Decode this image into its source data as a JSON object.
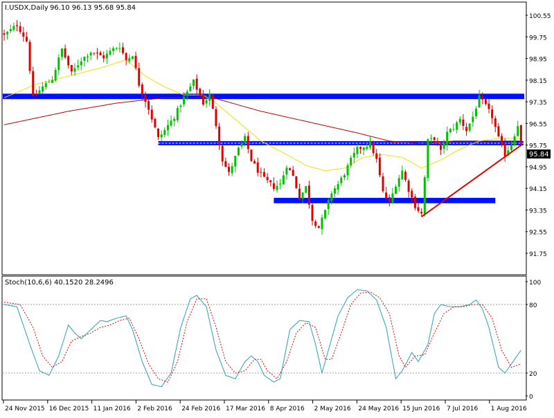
{
  "header": {
    "title": "I.USDX,Daily",
    "ohlc": "96.10 96.13 95.68 95.84"
  },
  "stoch_header": "Stoch(10,6,6) 40.1520 28.2496",
  "current_price_label": "95.84",
  "colors": {
    "bull": "#00c000",
    "bear": "#e00000",
    "ma_fast": "#f0e000",
    "ma_slow": "#c00000",
    "zone": "#0010ff",
    "trendline": "#e00000",
    "stoch_main": "#2aa0b0",
    "stoch_signal": "#e00000",
    "grid_text": "#000000"
  },
  "chart_data": [
    {
      "type": "candlestick",
      "title": "I.USDX,Daily",
      "ylim": [
        91.75,
        100.85
      ],
      "y_ticks": [
        "100.55",
        "99.75",
        "98.95",
        "98.15",
        "97.35",
        "96.55",
        "95.75",
        "94.95",
        "94.15",
        "93.35",
        "92.55",
        "91.75"
      ],
      "x_ticks": [
        "24 Nov 2015",
        "16 Dec 2015",
        "11 Jan 2016",
        "2 Feb 2016",
        "24 Feb 2016",
        "17 Mar 2016",
        "8 Apr 2016",
        "2 May 2016",
        "24 May 2016",
        "15 Jun 2016",
        "7 Jul 2016",
        "1 Aug 2016"
      ],
      "close_anchors": [
        [
          0,
          99.8
        ],
        [
          4,
          100.2
        ],
        [
          7,
          99.6
        ],
        [
          9,
          97.5
        ],
        [
          12,
          97.9
        ],
        [
          15,
          98.2
        ],
        [
          18,
          99.3
        ],
        [
          21,
          98.4
        ],
        [
          24,
          98.9
        ],
        [
          27,
          99.2
        ],
        [
          31,
          99.0
        ],
        [
          34,
          99.3
        ],
        [
          36,
          99.4
        ],
        [
          38,
          98.9
        ],
        [
          40,
          99.1
        ],
        [
          42,
          98.0
        ],
        [
          45,
          97.1
        ],
        [
          48,
          96.0
        ],
        [
          50,
          96.3
        ],
        [
          53,
          96.8
        ],
        [
          56,
          97.5
        ],
        [
          59,
          98.1
        ],
        [
          62,
          97.3
        ],
        [
          64,
          97.6
        ],
        [
          66,
          96.5
        ],
        [
          68,
          95.2
        ],
        [
          70,
          94.7
        ],
        [
          73,
          95.6
        ],
        [
          75,
          96.0
        ],
        [
          77,
          95.2
        ],
        [
          79,
          94.8
        ],
        [
          81,
          94.5
        ],
        [
          84,
          94.2
        ],
        [
          86,
          94.3
        ],
        [
          88,
          95.0
        ],
        [
          90,
          94.6
        ],
        [
          92,
          93.8
        ],
        [
          94,
          94.2
        ],
        [
          96,
          93.0
        ],
        [
          98,
          92.7
        ],
        [
          100,
          93.3
        ],
        [
          102,
          94.0
        ],
        [
          104,
          94.3
        ],
        [
          106,
          94.7
        ],
        [
          108,
          95.2
        ],
        [
          110,
          95.6
        ],
        [
          112,
          95.7
        ],
        [
          114,
          95.8
        ],
        [
          116,
          95.2
        ],
        [
          118,
          94.0
        ],
        [
          120,
          93.6
        ],
        [
          122,
          94.3
        ],
        [
          124,
          94.8
        ],
        [
          126,
          94.1
        ],
        [
          128,
          93.5
        ],
        [
          130,
          93.2
        ],
        [
          132,
          95.9
        ],
        [
          134,
          96.0
        ],
        [
          136,
          95.5
        ],
        [
          138,
          96.2
        ],
        [
          140,
          96.4
        ],
        [
          142,
          96.7
        ],
        [
          144,
          96.3
        ],
        [
          146,
          96.8
        ],
        [
          148,
          97.5
        ],
        [
          150,
          97.2
        ],
        [
          152,
          96.8
        ],
        [
          154,
          96.0
        ],
        [
          156,
          95.4
        ],
        [
          158,
          95.8
        ],
        [
          160,
          96.5
        ],
        [
          161,
          95.84
        ]
      ],
      "ma_fast_anchors": [
        [
          0,
          97.5
        ],
        [
          10,
          98.0
        ],
        [
          20,
          98.3
        ],
        [
          30,
          98.6
        ],
        [
          38,
          98.9
        ],
        [
          44,
          98.3
        ],
        [
          50,
          97.9
        ],
        [
          56,
          97.6
        ],
        [
          62,
          97.6
        ],
        [
          66,
          97.3
        ],
        [
          72,
          96.7
        ],
        [
          80,
          95.9
        ],
        [
          88,
          95.4
        ],
        [
          94,
          95.0
        ],
        [
          100,
          94.8
        ],
        [
          106,
          94.9
        ],
        [
          112,
          95.3
        ],
        [
          118,
          95.4
        ],
        [
          124,
          95.3
        ],
        [
          130,
          94.9
        ],
        [
          136,
          95.2
        ],
        [
          142,
          95.6
        ],
        [
          148,
          95.9
        ],
        [
          154,
          96.0
        ],
        [
          160,
          96.0
        ]
      ],
      "ma_slow_anchors": [
        [
          0,
          96.5
        ],
        [
          20,
          97.0
        ],
        [
          35,
          97.3
        ],
        [
          50,
          97.5
        ],
        [
          65,
          97.5
        ],
        [
          80,
          97.0
        ],
        [
          95,
          96.6
        ],
        [
          110,
          96.2
        ],
        [
          120,
          95.9
        ],
        [
          130,
          95.8
        ],
        [
          140,
          95.9
        ],
        [
          150,
          95.9
        ],
        [
          161,
          95.9
        ]
      ],
      "resistance_zone": [
        97.45,
        97.65
      ],
      "support_line": 95.82,
      "lower_zone": [
        93.6,
        93.8
      ],
      "trendline": [
        [
          130,
          93.1
        ],
        [
          161,
          95.78
        ]
      ]
    },
    {
      "type": "line",
      "title": "Stoch(10,6,6) 40.1520 28.2496",
      "ylim": [
        0,
        100
      ],
      "y_ticks": [
        "100",
        "80",
        "20",
        "0"
      ],
      "series": [
        {
          "name": "main",
          "anchors": [
            [
              0,
              80
            ],
            [
              4,
              78
            ],
            [
              8,
              45
            ],
            [
              11,
              22
            ],
            [
              14,
              18
            ],
            [
              17,
              35
            ],
            [
              20,
              62
            ],
            [
              22,
              55
            ],
            [
              24,
              50
            ],
            [
              27,
              58
            ],
            [
              30,
              66
            ],
            [
              32,
              65
            ],
            [
              35,
              68
            ],
            [
              38,
              70
            ],
            [
              40,
              58
            ],
            [
              43,
              30
            ],
            [
              46,
              10
            ],
            [
              49,
              8
            ],
            [
              52,
              20
            ],
            [
              55,
              60
            ],
            [
              58,
              85
            ],
            [
              60,
              88
            ],
            [
              63,
              78
            ],
            [
              66,
              40
            ],
            [
              69,
              18
            ],
            [
              72,
              15
            ],
            [
              75,
              30
            ],
            [
              77,
              35
            ],
            [
              79,
              30
            ],
            [
              81,
              18
            ],
            [
              84,
              12
            ],
            [
              86,
              15
            ],
            [
              89,
              58
            ],
            [
              92,
              66
            ],
            [
              95,
              65
            ],
            [
              97,
              45
            ],
            [
              99,
              20
            ],
            [
              101,
              40
            ],
            [
              104,
              70
            ],
            [
              107,
              86
            ],
            [
              110,
              93
            ],
            [
              113,
              92
            ],
            [
              116,
              84
            ],
            [
              119,
              60
            ],
            [
              122,
              15
            ],
            [
              124,
              22
            ],
            [
              127,
              38
            ],
            [
              129,
              30
            ],
            [
              132,
              45
            ],
            [
              134,
              72
            ],
            [
              136,
              80
            ],
            [
              139,
              78
            ],
            [
              142,
              78
            ],
            [
              145,
              80
            ],
            [
              147,
              84
            ],
            [
              149,
              76
            ],
            [
              151,
              60
            ],
            [
              154,
              25
            ],
            [
              156,
              20
            ],
            [
              158,
              28
            ],
            [
              161,
              40
            ]
          ]
        },
        {
          "name": "signal",
          "anchors": [
            [
              0,
              82
            ],
            [
              5,
              80
            ],
            [
              9,
              60
            ],
            [
              12,
              35
            ],
            [
              15,
              25
            ],
            [
              18,
              30
            ],
            [
              21,
              48
            ],
            [
              24,
              52
            ],
            [
              27,
              55
            ],
            [
              30,
              60
            ],
            [
              33,
              62
            ],
            [
              36,
              66
            ],
            [
              39,
              68
            ],
            [
              42,
              50
            ],
            [
              45,
              28
            ],
            [
              48,
              15
            ],
            [
              51,
              12
            ],
            [
              54,
              30
            ],
            [
              57,
              65
            ],
            [
              60,
              85
            ],
            [
              63,
              85
            ],
            [
              66,
              60
            ],
            [
              69,
              30
            ],
            [
              72,
              20
            ],
            [
              75,
              22
            ],
            [
              78,
              32
            ],
            [
              80,
              32
            ],
            [
              82,
              22
            ],
            [
              85,
              15
            ],
            [
              88,
              30
            ],
            [
              91,
              55
            ],
            [
              94,
              64
            ],
            [
              97,
              60
            ],
            [
              100,
              32
            ],
            [
              102,
              32
            ],
            [
              105,
              55
            ],
            [
              108,
              80
            ],
            [
              111,
              90
            ],
            [
              114,
              91
            ],
            [
              117,
              86
            ],
            [
              120,
              72
            ],
            [
              123,
              35
            ],
            [
              125,
              25
            ],
            [
              128,
              35
            ],
            [
              131,
              36
            ],
            [
              134,
              55
            ],
            [
              137,
              72
            ],
            [
              140,
              78
            ],
            [
              143,
              78
            ],
            [
              146,
              80
            ],
            [
              149,
              80
            ],
            [
              152,
              68
            ],
            [
              155,
              40
            ],
            [
              158,
              25
            ],
            [
              161,
              28
            ]
          ]
        }
      ]
    }
  ]
}
